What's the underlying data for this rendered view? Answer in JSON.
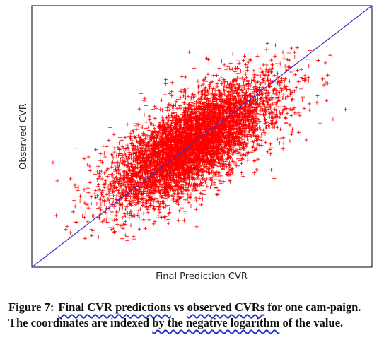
{
  "chart_data": {
    "type": "scatter",
    "xlabel": "Final Prediction CVR",
    "ylabel": "Observed CVR",
    "xlim": [
      0,
      1
    ],
    "ylim": [
      0,
      1
    ],
    "grid": false,
    "marker": "+",
    "point_color": "#ff0000",
    "reference_line": {
      "from": [
        0,
        0
      ],
      "to": [
        1,
        1
      ],
      "color": "#3333cc"
    },
    "cloud": {
      "count": 6000,
      "center_x": 0.47,
      "center_y": 0.47,
      "sd_along": 0.16,
      "sd_across": 0.055,
      "x_range": [
        0.03,
        0.99
      ],
      "y_range": [
        0.1,
        0.97
      ]
    }
  },
  "caption": {
    "label": "Figure 7:",
    "segments": [
      {
        "text": "Final CVR predictions",
        "underline": true
      },
      {
        "text": " vs ",
        "underline": false
      },
      {
        "text": "observed CVRs",
        "underline": true
      },
      {
        "text": " for one cam-paign. The coordinates are indexed ",
        "underline": false
      },
      {
        "text": "by the negative logarithm",
        "underline": true
      },
      {
        "text": " of the value.",
        "underline": false
      }
    ],
    "annotation_color": "#2233cc"
  }
}
